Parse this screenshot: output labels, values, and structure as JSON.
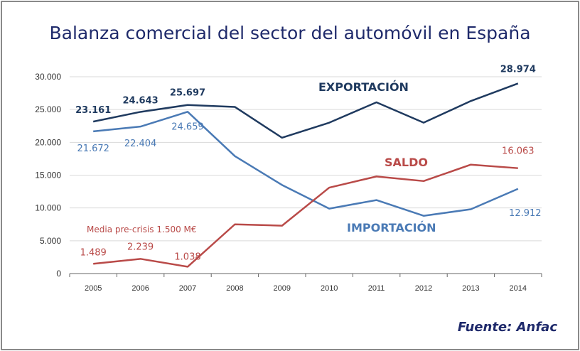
{
  "chart_data": {
    "type": "line",
    "title": "Balanza comercial del sector del automóvil en España",
    "source": "Fuente: Anfac",
    "categories": [
      "2005",
      "2006",
      "2007",
      "2008",
      "2009",
      "2010",
      "2011",
      "2012",
      "2013",
      "2014"
    ],
    "ylim": [
      0,
      30000
    ],
    "yticks": [
      0,
      5000,
      10000,
      15000,
      20000,
      25000,
      30000
    ],
    "ytick_labels": [
      "0",
      "5.000",
      "10.000",
      "15.000",
      "20.000",
      "25.000",
      "30.000"
    ],
    "grid": true,
    "series": [
      {
        "name": "EXPORTACIÓN",
        "color": "#1f3a5f",
        "values": [
          23161,
          24643,
          25697,
          25400,
          20700,
          23000,
          26100,
          23000,
          26300,
          28974
        ],
        "labels": {
          "0": "23.161",
          "1": "24.643",
          "2": "25.697",
          "9": "28.974"
        }
      },
      {
        "name": "IMPORTACIÓN",
        "color": "#4a7ab5",
        "values": [
          21672,
          22404,
          24659,
          17900,
          13500,
          9900,
          11200,
          8800,
          9800,
          12912
        ],
        "labels": {
          "0": "21.672",
          "1": "22.404",
          "2": "24.659",
          "9": "12.912"
        }
      },
      {
        "name": "SALDO",
        "color": "#b94a48",
        "values": [
          1489,
          2239,
          1038,
          7500,
          7300,
          13100,
          14800,
          14100,
          16600,
          16063
        ],
        "labels": {
          "0": "1.489",
          "1": "2.239",
          "2": "1.038",
          "9": "16.063"
        }
      }
    ],
    "annotations": [
      "Media pre-crisis 1.500 M€"
    ]
  }
}
